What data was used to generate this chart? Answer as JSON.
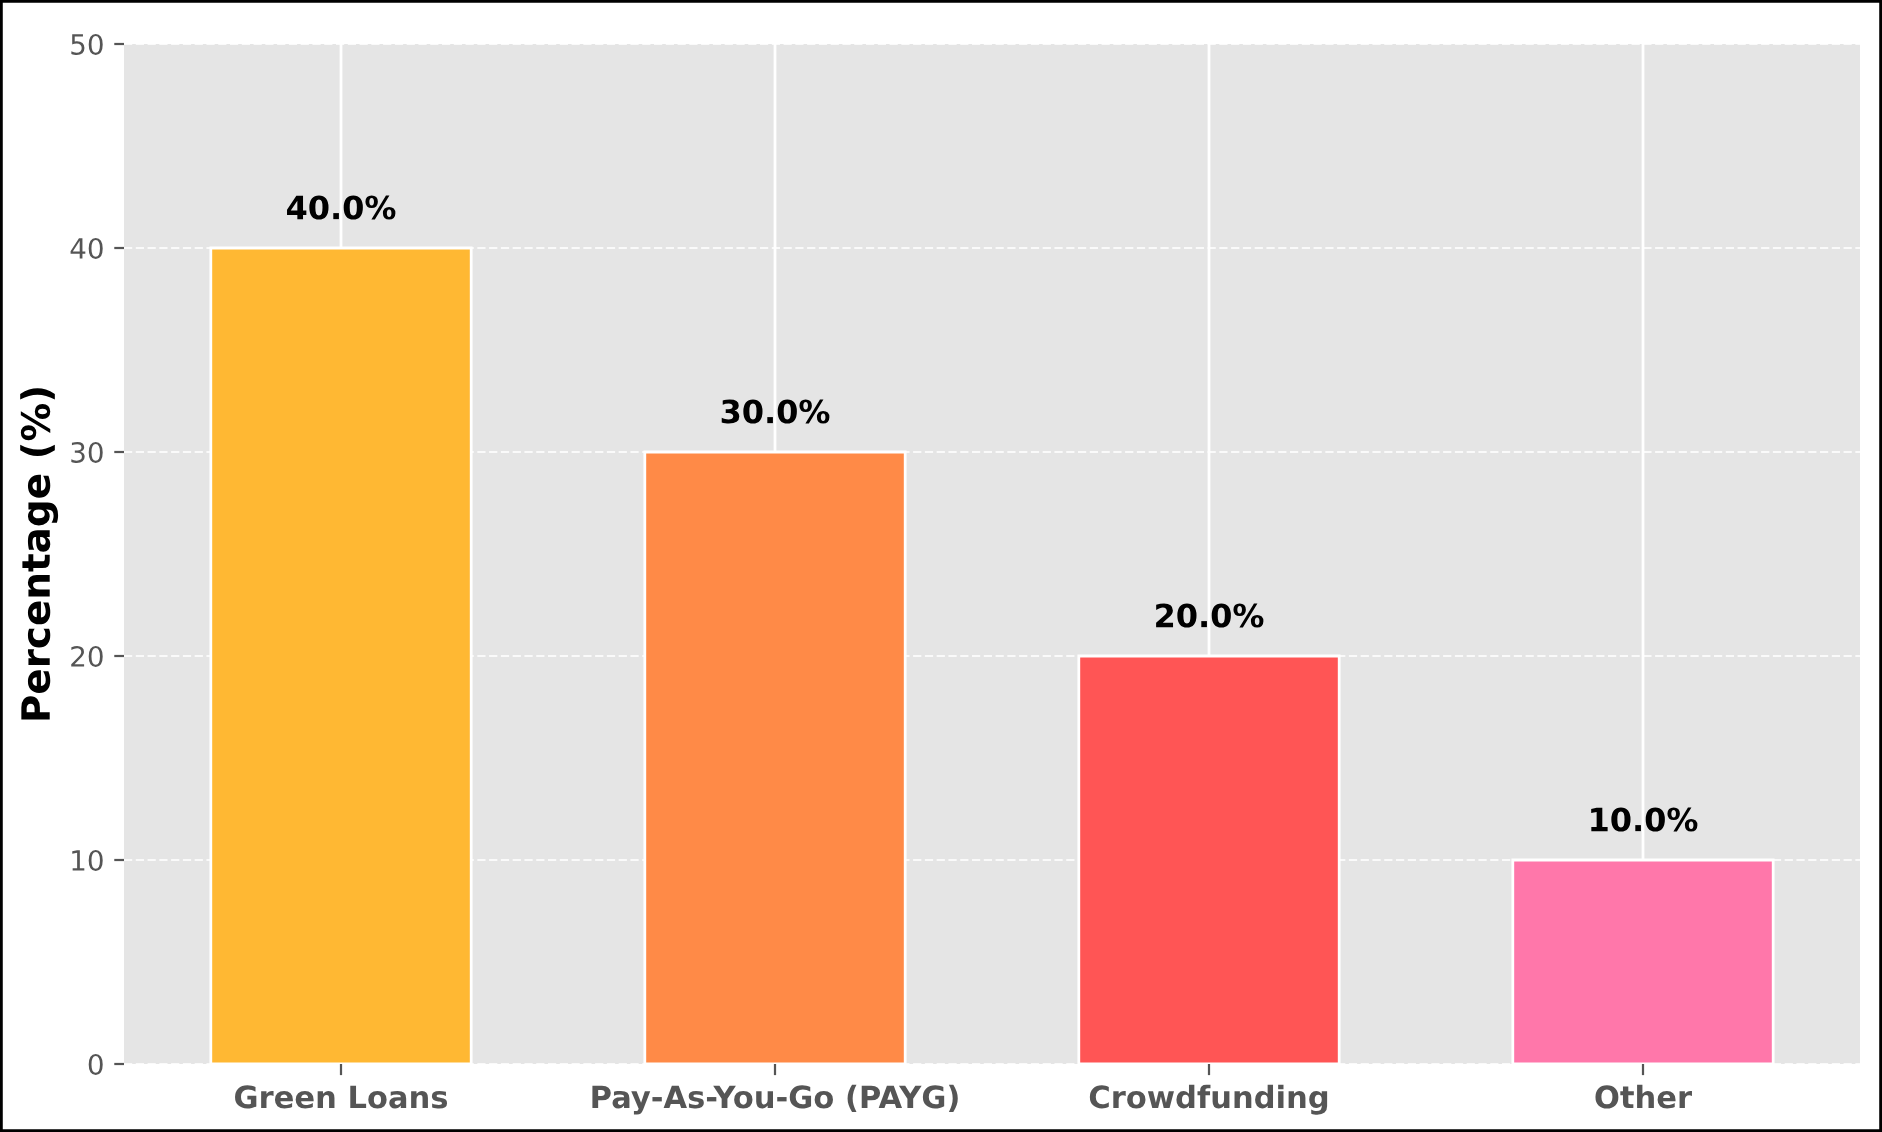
{
  "chart_data": {
    "type": "bar",
    "ylabel": "Percentage (%)",
    "categories": [
      "Green Loans",
      "Pay-As-You-Go (PAYG)",
      "Crowdfunding",
      "Other"
    ],
    "values": [
      40,
      30,
      20,
      10
    ],
    "colors": [
      "#ffb833",
      "#ff8a47",
      "#ff5555",
      "#ff77aa"
    ],
    "value_labels": [
      "40.0%",
      "30.0%",
      "20.0%",
      "10.0%"
    ],
    "ylim": [
      0,
      50
    ],
    "yticks": [
      0,
      10,
      20,
      30,
      40,
      50
    ],
    "grid": true
  }
}
